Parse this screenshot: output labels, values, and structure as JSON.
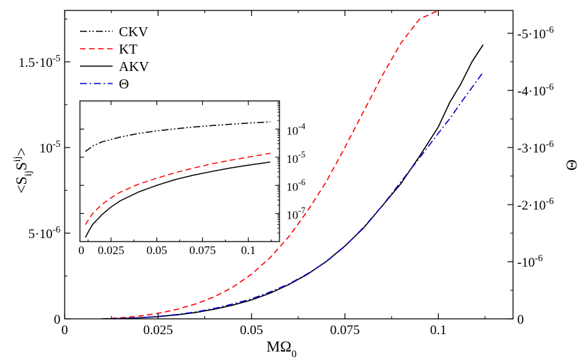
{
  "chart_data": {
    "type": "line",
    "title": "",
    "xlabel": "MΩ",
    "xlabel_subscript": "0",
    "ylabel_left": "<S_ij S^ij>",
    "ylabel_left_parts": {
      "open": "<S",
      "sub1": "ij",
      "mid": "S",
      "sup": "ij",
      "close": ">"
    },
    "ylabel_right": "Θ",
    "xlim": [
      0,
      0.12
    ],
    "ylim_left": [
      0,
      1.8e-05
    ],
    "ylim_right": [
      0,
      -5.4e-06
    ],
    "x_ticks": [
      {
        "value": 0,
        "label": "0"
      },
      {
        "value": 0.025,
        "label": "0.025"
      },
      {
        "value": 0.05,
        "label": "0.05"
      },
      {
        "value": 0.075,
        "label": "0.075"
      },
      {
        "value": 0.1,
        "label": "0.1"
      }
    ],
    "y_left_ticks": [
      {
        "value": 0,
        "label": "0"
      },
      {
        "value": 5e-06,
        "label": "5·10",
        "exp": "-6"
      },
      {
        "value": 1e-05,
        "label": "10",
        "exp": "-5"
      },
      {
        "value": 1.5e-05,
        "label": "1.5·10",
        "exp": "-5"
      }
    ],
    "y_right_ticks": [
      {
        "value": 0,
        "label": "0"
      },
      {
        "value": -1e-06,
        "label": "-10",
        "exp": "-6"
      },
      {
        "value": -2e-06,
        "label": "-2·10",
        "exp": "-6"
      },
      {
        "value": -3e-06,
        "label": "-3·10",
        "exp": "-6"
      },
      {
        "value": -4e-06,
        "label": "-4·10",
        "exp": "-6"
      },
      {
        "value": -5e-06,
        "label": "-5·10",
        "exp": "-6"
      }
    ],
    "legend": [
      {
        "name": "CKV",
        "color": "#000000",
        "dash": "10,3,2,3,2,3"
      },
      {
        "name": "KT",
        "color": "#ff0000",
        "dash": "8,5"
      },
      {
        "name": "AKV",
        "color": "#000000",
        "dash": ""
      },
      {
        "name": "Θ",
        "color": "#0000cc",
        "dash": "10,4,2,4"
      }
    ],
    "series": [
      {
        "name": "KT",
        "color": "#ff0000",
        "dash": "8,5",
        "axis": "left",
        "x": [
          0.01,
          0.015,
          0.02,
          0.025,
          0.03,
          0.035,
          0.04,
          0.045,
          0.05,
          0.055,
          0.06,
          0.065,
          0.07,
          0.075,
          0.08,
          0.085,
          0.09,
          0.095,
          0.1
        ],
        "y": [
          0,
          6e-08,
          1.6e-07,
          3.2e-07,
          5.5e-07,
          8.6e-07,
          1.28e-06,
          1.85e-06,
          2.6e-06,
          3.57e-06,
          4.8e-06,
          6.3e-06,
          8e-06,
          1e-05,
          1.21e-05,
          1.42e-05,
          1.61e-05,
          1.75e-05,
          1.8e-05
        ]
      },
      {
        "name": "AKV",
        "color": "#000000",
        "dash": "",
        "axis": "left",
        "x": [
          0.01,
          0.015,
          0.02,
          0.025,
          0.03,
          0.035,
          0.04,
          0.045,
          0.05,
          0.055,
          0.06,
          0.065,
          0.07,
          0.075,
          0.08,
          0.085,
          0.09,
          0.095,
          0.1,
          0.103,
          0.106,
          0.109,
          0.112
        ],
        "y": [
          0,
          2e-08,
          6e-08,
          1.3e-07,
          2.3e-07,
          3.7e-07,
          5.6e-07,
          8e-07,
          1.1e-06,
          1.5e-06,
          2e-06,
          2.6e-06,
          3.35e-06,
          4.25e-06,
          5.3e-06,
          6.6e-06,
          7.9e-06,
          9.5e-06,
          1.12e-05,
          1.26e-05,
          1.37e-05,
          1.5e-05,
          1.6e-05
        ]
      },
      {
        "name": "Θ",
        "color": "#0000cc",
        "dash": "10,4,2,4",
        "axis": "right",
        "x": [
          0.01,
          0.015,
          0.02,
          0.025,
          0.03,
          0.035,
          0.04,
          0.045,
          0.05,
          0.055,
          0.06,
          0.065,
          0.07,
          0.075,
          0.08,
          0.085,
          0.09,
          0.095,
          0.1,
          0.103,
          0.106,
          0.109,
          0.112
        ],
        "y": [
          0,
          -6e-09,
          -2e-08,
          -4.2e-08,
          -7.5e-08,
          -1.2e-07,
          -1.8e-07,
          -2.6e-07,
          -3.5e-07,
          -4.7e-07,
          -6.1e-07,
          -7.9e-07,
          -1e-06,
          -1.27e-06,
          -1.6e-06,
          -1.98e-06,
          -2.4e-06,
          -2.82e-06,
          -3.25e-06,
          -3.5e-06,
          -3.78e-06,
          -4.05e-06,
          -4.32e-06
        ]
      }
    ],
    "inset": {
      "type": "line",
      "yscale": "log",
      "xlim": [
        0.008,
        0.117
      ],
      "ylim": [
        1e-08,
        0.001
      ],
      "x_ticks": [
        {
          "value": 0,
          "label": "0"
        },
        {
          "value": 0.025,
          "label": "0.025"
        },
        {
          "value": 0.05,
          "label": "0.05"
        },
        {
          "value": 0.075,
          "label": "0.075"
        },
        {
          "value": 0.1,
          "label": "0.1"
        }
      ],
      "y_ticks": [
        {
          "value": 1e-07,
          "label": "10",
          "exp": "-7"
        },
        {
          "value": 1e-06,
          "label": "10",
          "exp": "-6"
        },
        {
          "value": 1e-05,
          "label": "10",
          "exp": "-5"
        },
        {
          "value": 0.0001,
          "label": "10",
          "exp": "-4"
        }
      ],
      "series": [
        {
          "name": "CKV",
          "color": "#000000",
          "dash": "10,3,2,3,2,3",
          "x": [
            0.011,
            0.015,
            0.02,
            0.03,
            0.04,
            0.05,
            0.06,
            0.07,
            0.08,
            0.09,
            0.1,
            0.112
          ],
          "y": [
            1.6e-05,
            2.5e-05,
            3.5e-05,
            5.2e-05,
            7e-05,
            8.6e-05,
            0.000102,
            0.000118,
            0.000133,
            0.000148,
            0.000163,
            0.00018
          ]
        },
        {
          "name": "KT",
          "color": "#ff0000",
          "dash": "8,5",
          "x": [
            0.011,
            0.013,
            0.015,
            0.02,
            0.025,
            0.03,
            0.04,
            0.05,
            0.06,
            0.07,
            0.08,
            0.09,
            0.1,
            0.112
          ],
          "y": [
            4e-08,
            6.5e-08,
            1e-07,
            2.1e-07,
            3.6e-07,
            5.7e-07,
            1.1e-06,
            1.8e-06,
            2.8e-06,
            4.1e-06,
            5.8e-06,
            7.8e-06,
            1e-05,
            1.38e-05
          ]
        },
        {
          "name": "AKV",
          "color": "#000000",
          "dash": "",
          "x": [
            0.011,
            0.013,
            0.015,
            0.02,
            0.025,
            0.03,
            0.04,
            0.05,
            0.06,
            0.07,
            0.08,
            0.09,
            0.1,
            0.112
          ],
          "y": [
            1.4e-08,
            2.5e-08,
            4.1e-08,
            9e-08,
            1.7e-07,
            2.8e-07,
            5.8e-07,
            1e-06,
            1.6e-06,
            2.3e-06,
            3.1e-06,
            4.1e-06,
            5.2e-06,
            6.7e-06
          ]
        }
      ]
    }
  }
}
